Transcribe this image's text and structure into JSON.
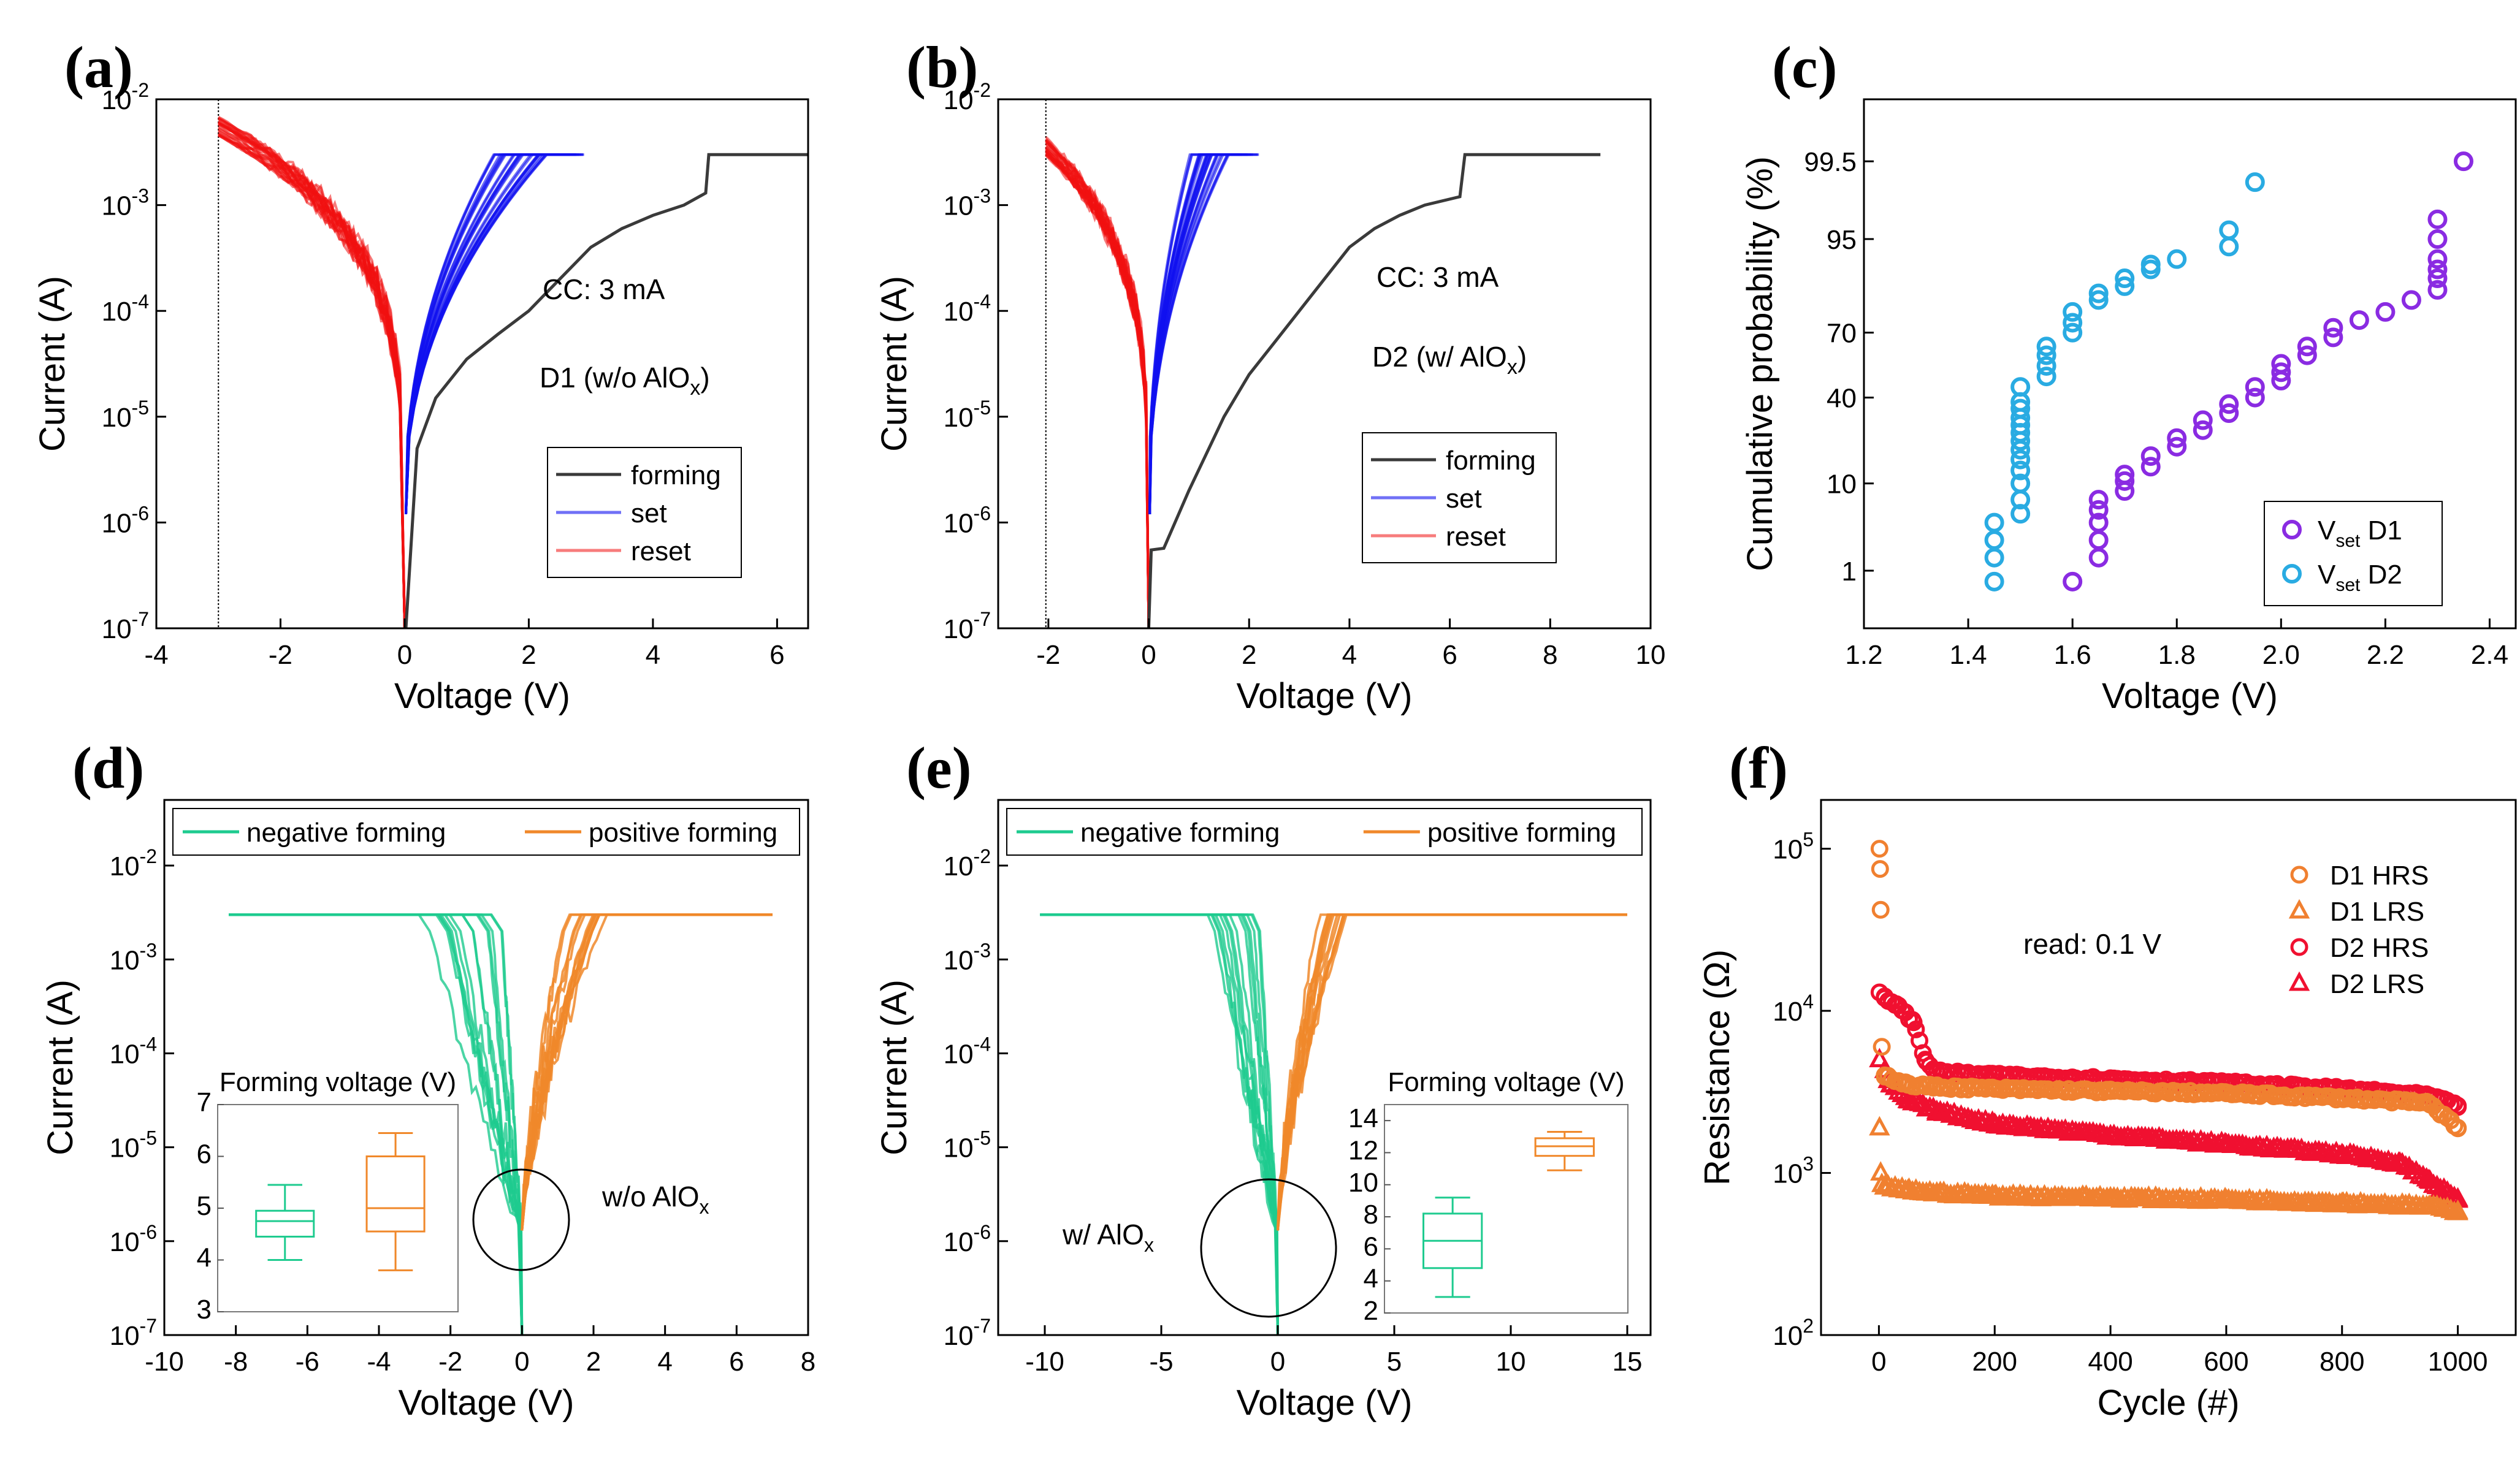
{
  "colors": {
    "forming": "#3a3a3a",
    "set": "#1010f0",
    "reset": "#f01010",
    "negative": "#1ecb8f",
    "positive": "#f0882a",
    "d1": "#8a2be2",
    "d2": "#29abe2",
    "d1hrs": "#f08030",
    "d2hrs": "#f01030"
  },
  "chart_data": [
    {
      "id": "a",
      "label": "(a)",
      "type": "line",
      "yscale": "log",
      "xlim": [
        -4,
        6.5
      ],
      "ylim": [
        1e-07,
        0.01
      ],
      "xticks": [
        "-4",
        "-2",
        "0",
        "2",
        "4",
        "6"
      ],
      "yticks": [
        "10-7",
        "10-6",
        "10-5",
        "10-4",
        "10-3",
        "10-2"
      ],
      "xlabel": "Voltage (V)",
      "ylabel": "Current (A)",
      "annotations": [
        "CC: 3 mA",
        "D1 (w/o AlOx)"
      ],
      "legend": [
        "forming",
        "set",
        "reset"
      ],
      "compliance_A": 0.003,
      "forming": {
        "x": [
          0.02,
          0.2,
          0.5,
          1,
          1.5,
          2,
          2.5,
          3,
          3.5,
          4,
          4.5,
          4.85,
          4.9,
          6.5
        ],
        "y": [
          1e-07,
          5e-06,
          1.5e-05,
          3.5e-05,
          6e-05,
          0.0001,
          0.0002,
          0.0004,
          0.0006,
          0.0008,
          0.001,
          0.0013,
          0.003,
          0.003
        ]
      }
    },
    {
      "id": "b",
      "label": "(b)",
      "type": "line",
      "yscale": "log",
      "xlim": [
        -3,
        10
      ],
      "ylim": [
        1e-07,
        0.01
      ],
      "xticks": [
        "-2",
        "0",
        "2",
        "4",
        "6",
        "8",
        "10"
      ],
      "yticks": [
        "10-7",
        "10-6",
        "10-5",
        "10-4",
        "10-3",
        "10-2"
      ],
      "xlabel": "Voltage (V)",
      "ylabel": "Current (A)",
      "annotations": [
        "CC: 3 mA",
        "D2 (w/ AlOx)"
      ],
      "legend": [
        "forming",
        "set",
        "reset"
      ],
      "compliance_A": 0.003,
      "forming": {
        "x": [
          0,
          0.05,
          0.3,
          0.8,
          1.5,
          2,
          2.5,
          3,
          3.5,
          4,
          4.5,
          5,
          5.5,
          6.2,
          6.3,
          9
        ],
        "y": [
          1e-07,
          5.5e-07,
          5.7e-07,
          2e-06,
          1e-05,
          2.5e-05,
          5e-05,
          0.0001,
          0.0002,
          0.0004,
          0.0006,
          0.0008,
          0.001,
          0.0012,
          0.003,
          0.003
        ]
      }
    },
    {
      "id": "c",
      "label": "(c)",
      "type": "scatter",
      "xlim": [
        1.2,
        2.45
      ],
      "ylim_probability": [
        0.5,
        99.8
      ],
      "xticks": [
        "1.2",
        "1.4",
        "1.6",
        "1.8",
        "2.0",
        "2.2",
        "2.4"
      ],
      "yticks": [
        "1",
        "10",
        "40",
        "70",
        "95",
        "99.5"
      ],
      "xlabel": "Voltage (V)",
      "ylabel": "Cumulative probability (%)",
      "series": [
        {
          "name": "Vset D1",
          "main": "V",
          "sub": "set",
          "suffix": " D1",
          "x": [
            1.6,
            1.65,
            1.65,
            1.65,
            1.65,
            1.65,
            1.7,
            1.7,
            1.7,
            1.75,
            1.75,
            1.8,
            1.8,
            1.85,
            1.85,
            1.9,
            1.9,
            1.95,
            1.95,
            2.0,
            2.0,
            2.0,
            2.05,
            2.05,
            2.1,
            2.1,
            2.15,
            2.2,
            2.25,
            2.3,
            2.3,
            2.3,
            2.3,
            2.3,
            2.3,
            2.35
          ],
          "y": [
            0.7,
            1.5,
            2.5,
            4,
            5.5,
            7,
            8.5,
            10.5,
            12,
            14,
            17,
            20,
            23,
            26,
            30,
            33,
            37,
            40,
            45,
            48,
            52,
            56,
            60,
            64,
            68,
            72,
            75,
            78,
            82,
            85,
            88,
            90,
            92,
            95,
            97,
            99.5
          ]
        },
        {
          "name": "Vset D2",
          "main": "V",
          "sub": "set",
          "suffix": " D2",
          "x": [
            1.45,
            1.45,
            1.45,
            1.45,
            1.5,
            1.5,
            1.5,
            1.5,
            1.5,
            1.5,
            1.5,
            1.5,
            1.5,
            1.5,
            1.5,
            1.5,
            1.5,
            1.55,
            1.55,
            1.55,
            1.55,
            1.6,
            1.6,
            1.6,
            1.65,
            1.65,
            1.7,
            1.7,
            1.75,
            1.75,
            1.8,
            1.9,
            1.9,
            1.95
          ],
          "y": [
            0.7,
            1.5,
            2.5,
            4,
            5,
            7,
            10,
            13,
            16,
            19,
            22,
            25,
            28,
            31,
            35,
            38,
            45,
            50,
            55,
            60,
            64,
            70,
            74,
            78,
            82,
            84,
            86,
            88,
            90,
            91,
            92,
            94,
            96,
            99
          ]
        }
      ]
    },
    {
      "id": "d",
      "label": "(d)",
      "type": "line",
      "yscale": "log",
      "xlim": [
        -10,
        8
      ],
      "ylim": [
        1e-07,
        0.05
      ],
      "xticks": [
        "-10",
        "-8",
        "-6",
        "-4",
        "-2",
        "0",
        "2",
        "4",
        "6",
        "8"
      ],
      "yticks": [
        "10-7",
        "10-6",
        "10-5",
        "10-4",
        "10-3",
        "10-2"
      ],
      "xlabel": "Voltage (V)",
      "ylabel": "Current (A)",
      "annotations": [
        "w/o AlOx"
      ],
      "legend": [
        "negative forming",
        "positive forming"
      ],
      "compliance_A": 0.003,
      "inset": {
        "title": "Forming voltage (V)",
        "ylim": [
          3,
          7
        ],
        "yticks": [
          "3",
          "4",
          "5",
          "6",
          "7"
        ],
        "boxes": [
          {
            "name": "negative",
            "min": 4.0,
            "q1": 4.45,
            "median": 4.75,
            "q3": 4.95,
            "max": 5.45
          },
          {
            "name": "positive",
            "min": 3.8,
            "q1": 4.55,
            "median": 5.0,
            "q3": 6.0,
            "max": 6.45
          }
        ]
      }
    },
    {
      "id": "e",
      "label": "(e)",
      "type": "line",
      "yscale": "log",
      "xlim": [
        -12,
        16
      ],
      "ylim": [
        1e-07,
        0.05
      ],
      "xticks": [
        "-10",
        "-5",
        "0",
        "5",
        "10",
        "15"
      ],
      "yticks": [
        "10-7",
        "10-6",
        "10-5",
        "10-4",
        "10-3",
        "10-2"
      ],
      "xlabel": "Voltage (V)",
      "ylabel": "Current (A)",
      "annotations": [
        "w/ AlOx"
      ],
      "legend": [
        "negative forming",
        "positive forming"
      ],
      "compliance_A": 0.003,
      "inset": {
        "title": "Forming voltage (V)",
        "ylim": [
          2,
          15
        ],
        "yticks": [
          "2",
          "4",
          "6",
          "8",
          "10",
          "12",
          "14"
        ],
        "boxes": [
          {
            "name": "negative",
            "min": 3.0,
            "q1": 4.8,
            "median": 6.5,
            "q3": 8.2,
            "max": 9.2
          },
          {
            "name": "positive",
            "min": 10.9,
            "q1": 11.8,
            "median": 12.4,
            "q3": 12.9,
            "max": 13.3
          }
        ]
      }
    },
    {
      "id": "f",
      "label": "(f)",
      "type": "scatter",
      "yscale": "log",
      "xlim": [
        -100,
        1100
      ],
      "ylim": [
        100,
        200000
      ],
      "xticks": [
        "0",
        "200",
        "400",
        "600",
        "800",
        "1000"
      ],
      "yticks": [
        "102",
        "103",
        "104",
        "105"
      ],
      "xlabel": "Cycle (#)",
      "ylabel": "Resistance (Ω)",
      "annotations": [
        "read: 0.1 V"
      ],
      "legend": [
        "D1 HRS",
        "D1 LRS",
        "D2 HRS",
        "D2 LRS"
      ],
      "series": [
        {
          "name": "D1 HRS",
          "x": [
            1,
            2,
            3,
            5,
            10,
            50,
            100,
            200,
            400,
            600,
            800,
            950,
            1000
          ],
          "y": [
            100000,
            75000,
            42000,
            6000,
            4000,
            3500,
            3400,
            3300,
            3200,
            3100,
            2900,
            2700,
            1900
          ]
        },
        {
          "name": "D1 LRS",
          "x": [
            1,
            3,
            5,
            10,
            50,
            100,
            200,
            400,
            600,
            800,
            950,
            1000
          ],
          "y": [
            1900,
            1000,
            850,
            820,
            780,
            750,
            720,
            700,
            680,
            650,
            620,
            580
          ]
        },
        {
          "name": "D2 HRS",
          "x": [
            1,
            10,
            30,
            60,
            80,
            100,
            200,
            400,
            600,
            800,
            950,
            1000
          ],
          "y": [
            13000,
            12000,
            11000,
            8500,
            5000,
            4200,
            4000,
            3800,
            3600,
            3300,
            3000,
            2600
          ]
        },
        {
          "name": "D2 LRS",
          "x": [
            1,
            20,
            50,
            100,
            200,
            400,
            600,
            800,
            900,
            950,
            1000
          ],
          "y": [
            5000,
            3500,
            2800,
            2400,
            2000,
            1700,
            1500,
            1300,
            1150,
            900,
            680
          ]
        }
      ]
    }
  ]
}
